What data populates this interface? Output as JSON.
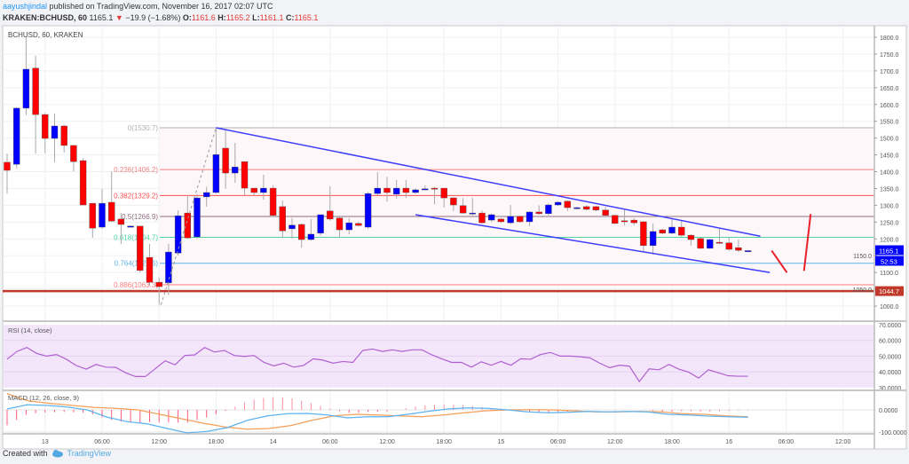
{
  "header": {
    "user": "aayushjindal",
    "published": " published on TradingView.com, November 16, 2017 02:07 UTC",
    "symbol": "KRAKEN:BCHUSD, 60",
    "last": "1165.1",
    "change": "−19.9 (−1.68%)",
    "o_label": "O:",
    "o": "1161.6",
    "h_label": "H:",
    "h": "1165.2",
    "l_label": "L:",
    "l": "1161.1",
    "c_label": "C:",
    "c": "1165.1",
    "change_icon": "down-triangle-icon"
  },
  "chart_title": "BCHUSD, 60, KRAKEN",
  "colors": {
    "up": "#0000ff",
    "down": "#ff0000",
    "trend": "#3d3dff",
    "projection": "#e8202a",
    "support": "#c0392b",
    "rsi": "#b05fd0",
    "macd": "#5eb3f0",
    "signal": "#f5a05a"
  },
  "chart_data": {
    "type": "candlestick",
    "price_ticks": [
      "1800.0",
      "1750.0",
      "1700.0",
      "1650.0",
      "1600.0",
      "1550.0",
      "1500.0",
      "1450.0",
      "1400.0",
      "1350.0",
      "1300.0",
      "1250.0",
      "1200.0",
      "1150.0",
      "1100.0",
      "1050.0",
      "1000.0"
    ],
    "ylim": [
      1000,
      1800
    ],
    "time_labels": [
      [
        "13",
        4
      ],
      [
        "06:00",
        10
      ],
      [
        "12:00",
        16
      ],
      [
        "18:00",
        22
      ],
      [
        "14",
        28
      ],
      [
        "06:00",
        34
      ],
      [
        "12:00",
        40
      ],
      [
        "18:00",
        46
      ],
      [
        "15",
        52
      ],
      [
        "06:00",
        58
      ],
      [
        "12:00",
        64
      ],
      [
        "18:00",
        70
      ],
      [
        "16",
        76
      ],
      [
        "06:00",
        82
      ],
      [
        "12:00",
        88
      ]
    ],
    "candles": [
      [
        1428,
        1454,
        1335,
        1404
      ],
      [
        1422,
        1592,
        1410,
        1589
      ],
      [
        1589,
        1800,
        1568,
        1705
      ],
      [
        1708,
        1745,
        1454,
        1570
      ],
      [
        1570,
        1575,
        1455,
        1499
      ],
      [
        1499,
        1573,
        1428,
        1536
      ],
      [
        1536,
        1540,
        1457,
        1478
      ],
      [
        1478,
        1480,
        1401,
        1430
      ],
      [
        1433,
        1441,
        1301,
        1301
      ],
      [
        1306,
        1306,
        1203,
        1232
      ],
      [
        1235,
        1349,
        1230,
        1306
      ],
      [
        1309,
        1401,
        1250,
        1253
      ],
      [
        1259,
        1277,
        1185,
        1243
      ],
      [
        1238,
        1240,
        1236,
        1238
      ],
      [
        1238,
        1238,
        1100,
        1106
      ],
      [
        1145,
        1185,
        1060,
        1071
      ],
      [
        1071,
        1085,
        1004,
        1058
      ],
      [
        1069,
        1185,
        1033,
        1161
      ],
      [
        1158,
        1285,
        1150,
        1269
      ],
      [
        1277,
        1330,
        1200,
        1203
      ],
      [
        1206,
        1333,
        1200,
        1322
      ],
      [
        1325,
        1355,
        1296,
        1338
      ],
      [
        1338,
        1532,
        1335,
        1451
      ],
      [
        1470,
        1523,
        1349,
        1396
      ],
      [
        1396,
        1486,
        1367,
        1414
      ],
      [
        1430,
        1430,
        1330,
        1351
      ],
      [
        1351,
        1351,
        1330,
        1338
      ],
      [
        1338,
        1391,
        1317,
        1351
      ],
      [
        1351,
        1360,
        1265,
        1270
      ],
      [
        1296,
        1314,
        1203,
        1224
      ],
      [
        1230,
        1262,
        1201,
        1241
      ],
      [
        1243,
        1246,
        1174,
        1198
      ],
      [
        1198,
        1259,
        1195,
        1214
      ],
      [
        1217,
        1272,
        1210,
        1272
      ],
      [
        1283,
        1357,
        1254,
        1259
      ],
      [
        1262,
        1265,
        1204,
        1227
      ],
      [
        1227,
        1262,
        1214,
        1248
      ],
      [
        1246,
        1250,
        1238,
        1240
      ],
      [
        1235,
        1340,
        1230,
        1335
      ],
      [
        1335,
        1399,
        1330,
        1351
      ],
      [
        1351,
        1385,
        1311,
        1338
      ],
      [
        1333,
        1375,
        1320,
        1351
      ],
      [
        1351,
        1375,
        1322,
        1338
      ],
      [
        1338,
        1350,
        1335,
        1346
      ],
      [
        1349,
        1360,
        1345,
        1349
      ],
      [
        1351,
        1355,
        1303,
        1350
      ],
      [
        1351,
        1351,
        1293,
        1322
      ],
      [
        1322,
        1324,
        1283,
        1301
      ],
      [
        1299,
        1322,
        1275,
        1277
      ],
      [
        1277,
        1322,
        1270,
        1277
      ],
      [
        1277,
        1285,
        1246,
        1248
      ],
      [
        1256,
        1276,
        1250,
        1272
      ],
      [
        1259,
        1262,
        1248,
        1251
      ],
      [
        1248,
        1301,
        1245,
        1267
      ],
      [
        1267,
        1270,
        1248,
        1251
      ],
      [
        1251,
        1282,
        1238,
        1280
      ],
      [
        1280,
        1300,
        1272,
        1275
      ],
      [
        1275,
        1305,
        1270,
        1301
      ],
      [
        1301,
        1312,
        1298,
        1309
      ],
      [
        1312,
        1315,
        1283,
        1293
      ],
      [
        1292,
        1296,
        1288,
        1293
      ],
      [
        1296,
        1300,
        1284,
        1288
      ],
      [
        1296,
        1298,
        1282,
        1286
      ],
      [
        1286,
        1296,
        1268,
        1270
      ],
      [
        1270,
        1272,
        1244,
        1246
      ],
      [
        1254,
        1286,
        1240,
        1253
      ],
      [
        1256,
        1262,
        1240,
        1248
      ],
      [
        1251,
        1253,
        1159,
        1180
      ],
      [
        1180,
        1246,
        1154,
        1222
      ],
      [
        1227,
        1230,
        1214,
        1217
      ],
      [
        1217,
        1259,
        1214,
        1235
      ],
      [
        1235,
        1255,
        1207,
        1211
      ],
      [
        1211,
        1214,
        1180,
        1198
      ],
      [
        1201,
        1204,
        1170,
        1172
      ],
      [
        1172,
        1200,
        1170,
        1198
      ],
      [
        1190,
        1230,
        1186,
        1188
      ],
      [
        1188,
        1203,
        1165,
        1169
      ],
      [
        1174,
        1198,
        1162,
        1166
      ],
      [
        1161.6,
        1165.2,
        1161.1,
        1165.1
      ]
    ],
    "last_price_label": "1165.1",
    "countdown_label": "52:53",
    "support_level": {
      "value": 1044.7,
      "label": "1044.7"
    },
    "fibonacci": [
      {
        "label": "0(1530.7)",
        "value": 1530.7,
        "color": "#b0b0b0"
      },
      {
        "label": "0.236(1406.2)",
        "value": 1406.2,
        "color": "#f08080"
      },
      {
        "label": "0.382(1329.2)",
        "value": 1329.2,
        "color": "#ff4d4d"
      },
      {
        "label": "0.5(1266.9)",
        "value": 1266.9,
        "color": "#8e6b7e"
      },
      {
        "label": "0.618(1204.7)",
        "value": 1204.7,
        "color": "#4cd3a0"
      },
      {
        "label": "0.764(1127.6)",
        "value": 1127.6,
        "color": "#5eb3e8"
      },
      {
        "label": "0.886(1063.3)",
        "value": 1063.3,
        "color": "#ff7a7a"
      }
    ],
    "trendlines": [
      {
        "name": "upper-channel",
        "from": [
          22,
          1530.7
        ],
        "to": [
          79.3,
          1208
        ]
      },
      {
        "name": "lower-channel",
        "from": [
          43,
          1272
        ],
        "to": [
          80.3,
          1100
        ]
      }
    ],
    "projection": [
      [
        80.5,
        1165
      ],
      [
        82.1,
        1100
      ],
      [
        83.9,
        1105
      ],
      [
        84.6,
        1274
      ]
    ],
    "rsi": {
      "label": "RSI (14, close)",
      "ticks": [
        "70.0000",
        "60.0000",
        "50.0000",
        "40.0000",
        "30.0000"
      ],
      "ylim": [
        30,
        70
      ],
      "values": [
        48,
        53,
        55.5,
        51.7,
        50,
        51,
        48,
        44,
        41.7,
        44.7,
        43,
        42.8,
        39.4,
        37,
        37,
        42,
        47,
        44.5,
        50.4,
        50.8,
        55.5,
        52.6,
        53.6,
        50.4,
        49.8,
        50.4,
        46,
        43.8,
        45.5,
        43,
        44,
        48.3,
        47.4,
        45.5,
        46.6,
        46,
        53.6,
        54.5,
        53,
        54,
        53,
        54,
        54,
        50.8,
        48.3,
        46,
        46,
        43,
        46.4,
        44.2,
        46.6,
        44.2,
        48.3,
        48,
        51,
        52.3,
        50,
        50,
        49.6,
        48.9,
        45.5,
        42.6,
        44.2,
        43.6,
        33.8,
        41.9,
        41.3,
        44.7,
        41.7,
        39.8,
        36,
        41.3,
        39.4,
        37.5,
        37.2,
        37.2
      ]
    },
    "macd": {
      "label": "MACD (12, 26, close, 9)",
      "ticks": [
        "0.0000",
        "-100.0000"
      ],
      "macd": [
        4,
        23,
        20,
        13,
        0,
        -33,
        -53,
        -63,
        -84,
        -104,
        -97,
        -80,
        -47,
        -27,
        -17,
        -16,
        -23,
        -36,
        -31,
        -31,
        -20,
        -7,
        4,
        9,
        7,
        0,
        -9,
        -13,
        -11,
        -7,
        -9,
        -7,
        -9,
        -20,
        -23,
        -28,
        -31,
        -33
      ],
      "signal": [
        73,
        40,
        29,
        20,
        11,
        7,
        0,
        -20,
        -40,
        -60,
        -77,
        -87,
        -84,
        -71,
        -47,
        -27,
        -20,
        -23,
        -27,
        -31,
        -23,
        -13,
        -4,
        0,
        1,
        0,
        -4,
        -9,
        -9,
        -7,
        -9,
        -17,
        -20,
        -27,
        -31
      ]
    }
  },
  "footer": {
    "created": "Created with",
    "brand": "TradingView",
    "logo_icon": "tradingview-cloud-icon"
  }
}
